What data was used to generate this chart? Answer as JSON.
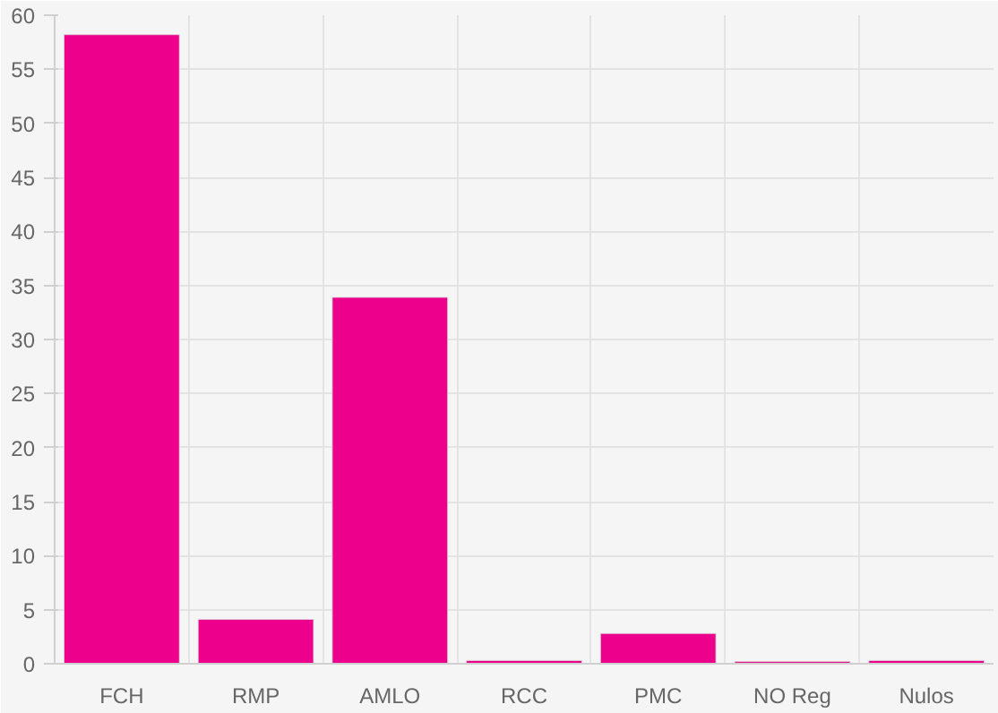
{
  "chart_data": {
    "type": "bar",
    "categories": [
      "FCH",
      "RMP",
      "AMLO",
      "RCC",
      "PMC",
      "NO Reg",
      "Nulos"
    ],
    "values": [
      58.2,
      4.1,
      33.9,
      0.3,
      2.8,
      0.2,
      0.3
    ],
    "color": "#ec008c",
    "ylim": [
      0,
      60
    ],
    "yticks": [
      0,
      5,
      10,
      15,
      20,
      25,
      30,
      35,
      40,
      45,
      50,
      55,
      60
    ],
    "grid": true
  }
}
